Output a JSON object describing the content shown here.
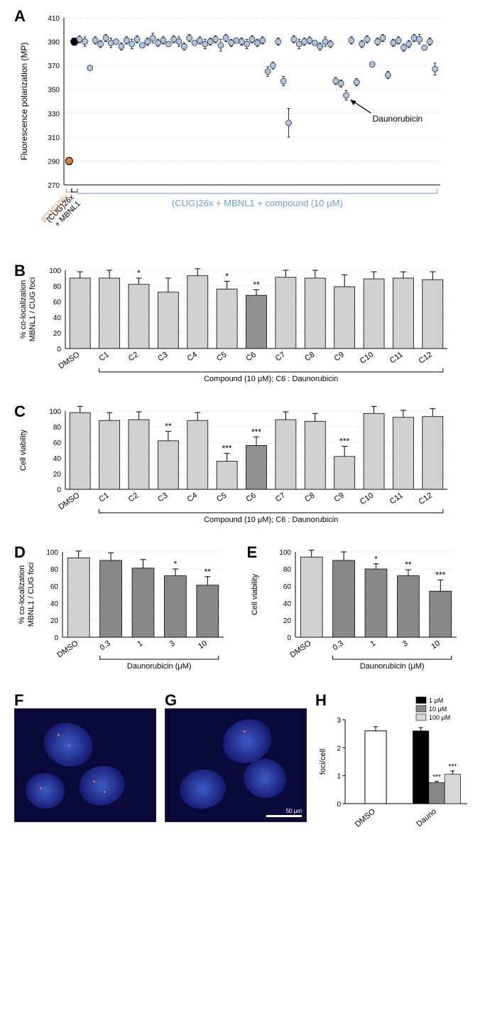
{
  "panelA": {
    "label": "A",
    "ylabel": "Fluorescence polarization (MP)",
    "ylim": [
      270,
      410
    ],
    "yticks": [
      270,
      290,
      310,
      330,
      350,
      370,
      390,
      410
    ],
    "control_label_1": "(CUG)26x",
    "control_label_2": "(CUG)26x\n+ MBNL1",
    "bracket_label": "(CUG)26x + MBNL1 + compound (10 μM)",
    "annotation": "Daunorubicin",
    "control_points": [
      {
        "x": 0,
        "y": 290,
        "err": 3,
        "color": "#e08030"
      },
      {
        "x": 1,
        "y": 390,
        "err": 3,
        "color": "#000000"
      }
    ],
    "compound_color": "#a8c6e8",
    "compound_border": "#333",
    "grid_color": "#bbb",
    "label_fontsize": 12,
    "tick_fontsize": 10,
    "compound_points": [
      {
        "y": 392,
        "err": 3
      },
      {
        "y": 390,
        "err": 4
      },
      {
        "y": 368,
        "err": 2
      },
      {
        "y": 391,
        "err": 3
      },
      {
        "y": 388,
        "err": 3
      },
      {
        "y": 393,
        "err": 3
      },
      {
        "y": 389,
        "err": 4
      },
      {
        "y": 390,
        "err": 2
      },
      {
        "y": 386,
        "err": 3
      },
      {
        "y": 391,
        "err": 3
      },
      {
        "y": 388,
        "err": 4
      },
      {
        "y": 392,
        "err": 3
      },
      {
        "y": 387,
        "err": 2
      },
      {
        "y": 390,
        "err": 3
      },
      {
        "y": 393,
        "err": 4
      },
      {
        "y": 389,
        "err": 3
      },
      {
        "y": 391,
        "err": 3
      },
      {
        "y": 388,
        "err": 2
      },
      {
        "y": 392,
        "err": 3
      },
      {
        "y": 390,
        "err": 4
      },
      {
        "y": 386,
        "err": 3
      },
      {
        "y": 393,
        "err": 3
      },
      {
        "y": 389,
        "err": 2
      },
      {
        "y": 391,
        "err": 3
      },
      {
        "y": 388,
        "err": 4
      },
      {
        "y": 390,
        "err": 3
      },
      {
        "y": 392,
        "err": 3
      },
      {
        "y": 387,
        "err": 5
      },
      {
        "y": 393,
        "err": 3
      },
      {
        "y": 389,
        "err": 3
      },
      {
        "y": 391,
        "err": 2
      },
      {
        "y": 390,
        "err": 3
      },
      {
        "y": 388,
        "err": 4
      },
      {
        "y": 392,
        "err": 3
      },
      {
        "y": 389,
        "err": 3
      },
      {
        "y": 391,
        "err": 3
      },
      {
        "y": 365,
        "err": 4
      },
      {
        "y": 370,
        "err": 3
      },
      {
        "y": 390,
        "err": 3
      },
      {
        "y": 357,
        "err": 4
      },
      {
        "y": 322,
        "err": 12
      },
      {
        "y": 392,
        "err": 3
      },
      {
        "y": 388,
        "err": 4
      },
      {
        "y": 390,
        "err": 3
      },
      {
        "y": 391,
        "err": 3
      },
      {
        "y": 389,
        "err": 2
      },
      {
        "y": 386,
        "err": 3
      },
      {
        "y": 390,
        "err": 4
      },
      {
        "y": 388,
        "err": 3
      },
      {
        "y": 357,
        "err": 3
      },
      {
        "y": 355,
        "err": 3
      },
      {
        "y": 345,
        "err": 4
      },
      {
        "y": 391,
        "err": 3
      },
      {
        "y": 356,
        "err": 3
      },
      {
        "y": 388,
        "err": 3
      },
      {
        "y": 392,
        "err": 3
      },
      {
        "y": 371,
        "err": 2
      },
      {
        "y": 390,
        "err": 3
      },
      {
        "y": 393,
        "err": 3
      },
      {
        "y": 362,
        "err": 3
      },
      {
        "y": 389,
        "err": 3
      },
      {
        "y": 391,
        "err": 3
      },
      {
        "y": 385,
        "err": 3
      },
      {
        "y": 388,
        "err": 3
      },
      {
        "y": 393,
        "err": 3
      },
      {
        "y": 392,
        "err": 4
      },
      {
        "y": 385,
        "err": 2
      },
      {
        "y": 390,
        "err": 3
      },
      {
        "y": 367,
        "err": 5
      }
    ],
    "annotation_target_index": 51
  },
  "panelB": {
    "label": "B",
    "ylabel": "% co-localization\nMBNL1 / CUG foci",
    "xlabel_below": "Compound (10 μM); C6 : Daunorubicin",
    "ylim": [
      0,
      100
    ],
    "yticks": [
      0,
      20,
      40,
      60,
      80,
      100
    ],
    "categories": [
      "DMSO",
      "C1",
      "C2",
      "C3",
      "C4",
      "C5",
      "C6",
      "C7",
      "C8",
      "C9",
      "C10",
      "C11",
      "C12"
    ],
    "values": [
      90,
      90,
      82,
      72,
      93,
      76,
      68,
      91,
      90,
      79,
      89,
      90,
      88
    ],
    "errors": [
      8,
      10,
      8,
      18,
      9,
      10,
      7,
      9,
      10,
      15,
      9,
      8,
      10
    ],
    "sig": [
      "",
      "",
      "*",
      "",
      "",
      "*",
      "**",
      "",
      "",
      "",
      "",
      "",
      ""
    ],
    "highlight_index": 6,
    "bar_color": "#d0d0d0",
    "highlight_color": "#909090",
    "bar_border": "#000",
    "grid_color": "#bbb"
  },
  "panelC": {
    "label": "C",
    "ylabel": "Cell viability",
    "xlabel_below": "Compound (10 μM); C6 : Daunorubicin",
    "ylim": [
      0,
      100
    ],
    "yticks": [
      0,
      20,
      40,
      60,
      80,
      100
    ],
    "categories": [
      "DMSO",
      "C1",
      "C2",
      "C3",
      "C4",
      "C5",
      "C6",
      "C7",
      "C8",
      "C9",
      "C10",
      "C11",
      "C12"
    ],
    "values": [
      98,
      88,
      89,
      62,
      88,
      36,
      56,
      89,
      87,
      42,
      97,
      92,
      93
    ],
    "errors": [
      8,
      10,
      10,
      12,
      10,
      10,
      11,
      10,
      10,
      13,
      9,
      9,
      10
    ],
    "sig": [
      "",
      "",
      "",
      "**",
      "",
      "***",
      "***",
      "",
      "",
      "***",
      "",
      "",
      ""
    ],
    "highlight_index": 6,
    "bar_color": "#d0d0d0",
    "highlight_color": "#909090",
    "bar_border": "#000",
    "grid_color": "#bbb"
  },
  "panelD": {
    "label": "D",
    "ylabel": "% co-localization\nMBNL1 / CUG foci",
    "xlabel_below": "Daunorubicin (μM)",
    "ylim": [
      0,
      100
    ],
    "yticks": [
      0,
      20,
      40,
      60,
      80,
      100
    ],
    "categories": [
      "DMSO",
      "0.3",
      "1",
      "3",
      "10"
    ],
    "values": [
      93,
      90,
      81,
      72,
      61
    ],
    "errors": [
      8,
      9,
      10,
      8,
      10
    ],
    "sig": [
      "",
      "",
      "",
      "*",
      "**"
    ],
    "dmso_color": "#d0d0d0",
    "dose_color": "#888888",
    "bar_border": "#000",
    "grid_color": "#bbb"
  },
  "panelE": {
    "label": "E",
    "ylabel": "Cell viability",
    "xlabel_below": "Daunorubicin (μM)",
    "ylim": [
      0,
      100
    ],
    "yticks": [
      0,
      20,
      40,
      60,
      80,
      100
    ],
    "categories": [
      "DMSO",
      "0.3",
      "1",
      "3",
      "10"
    ],
    "values": [
      94,
      90,
      80,
      72,
      54
    ],
    "errors": [
      8,
      10,
      6,
      7,
      13
    ],
    "sig": [
      "",
      "",
      "*",
      "**",
      "***"
    ],
    "dmso_color": "#d0d0d0",
    "dose_color": "#888888",
    "bar_border": "#000",
    "grid_color": "#bbb"
  },
  "panelF": {
    "label": "F"
  },
  "panelG": {
    "label": "G",
    "scalebar_text": "50 μm"
  },
  "panelH": {
    "label": "H",
    "ylabel": "foci/cell",
    "ylim": [
      0,
      3
    ],
    "yticks": [
      0,
      1,
      2,
      3
    ],
    "legend": [
      {
        "label": "1 μM",
        "color": "#000000"
      },
      {
        "label": "10 μM",
        "color": "#888888"
      },
      {
        "label": "100 μM",
        "color": "#d8d8d8"
      }
    ],
    "groups": [
      "DMSO",
      "Dauno"
    ],
    "dmso": {
      "value": 2.6,
      "err": 0.15,
      "color": "#ffffff",
      "border": "#000"
    },
    "dauno_bars": [
      {
        "value": 2.6,
        "err": 0.12,
        "color": "#000000",
        "sig": ""
      },
      {
        "value": 0.75,
        "err": 0.05,
        "color": "#888888",
        "sig": "***"
      },
      {
        "value": 1.05,
        "err": 0.12,
        "color": "#d8d8d8",
        "sig": "***"
      }
    ],
    "bar_border": "#000"
  }
}
